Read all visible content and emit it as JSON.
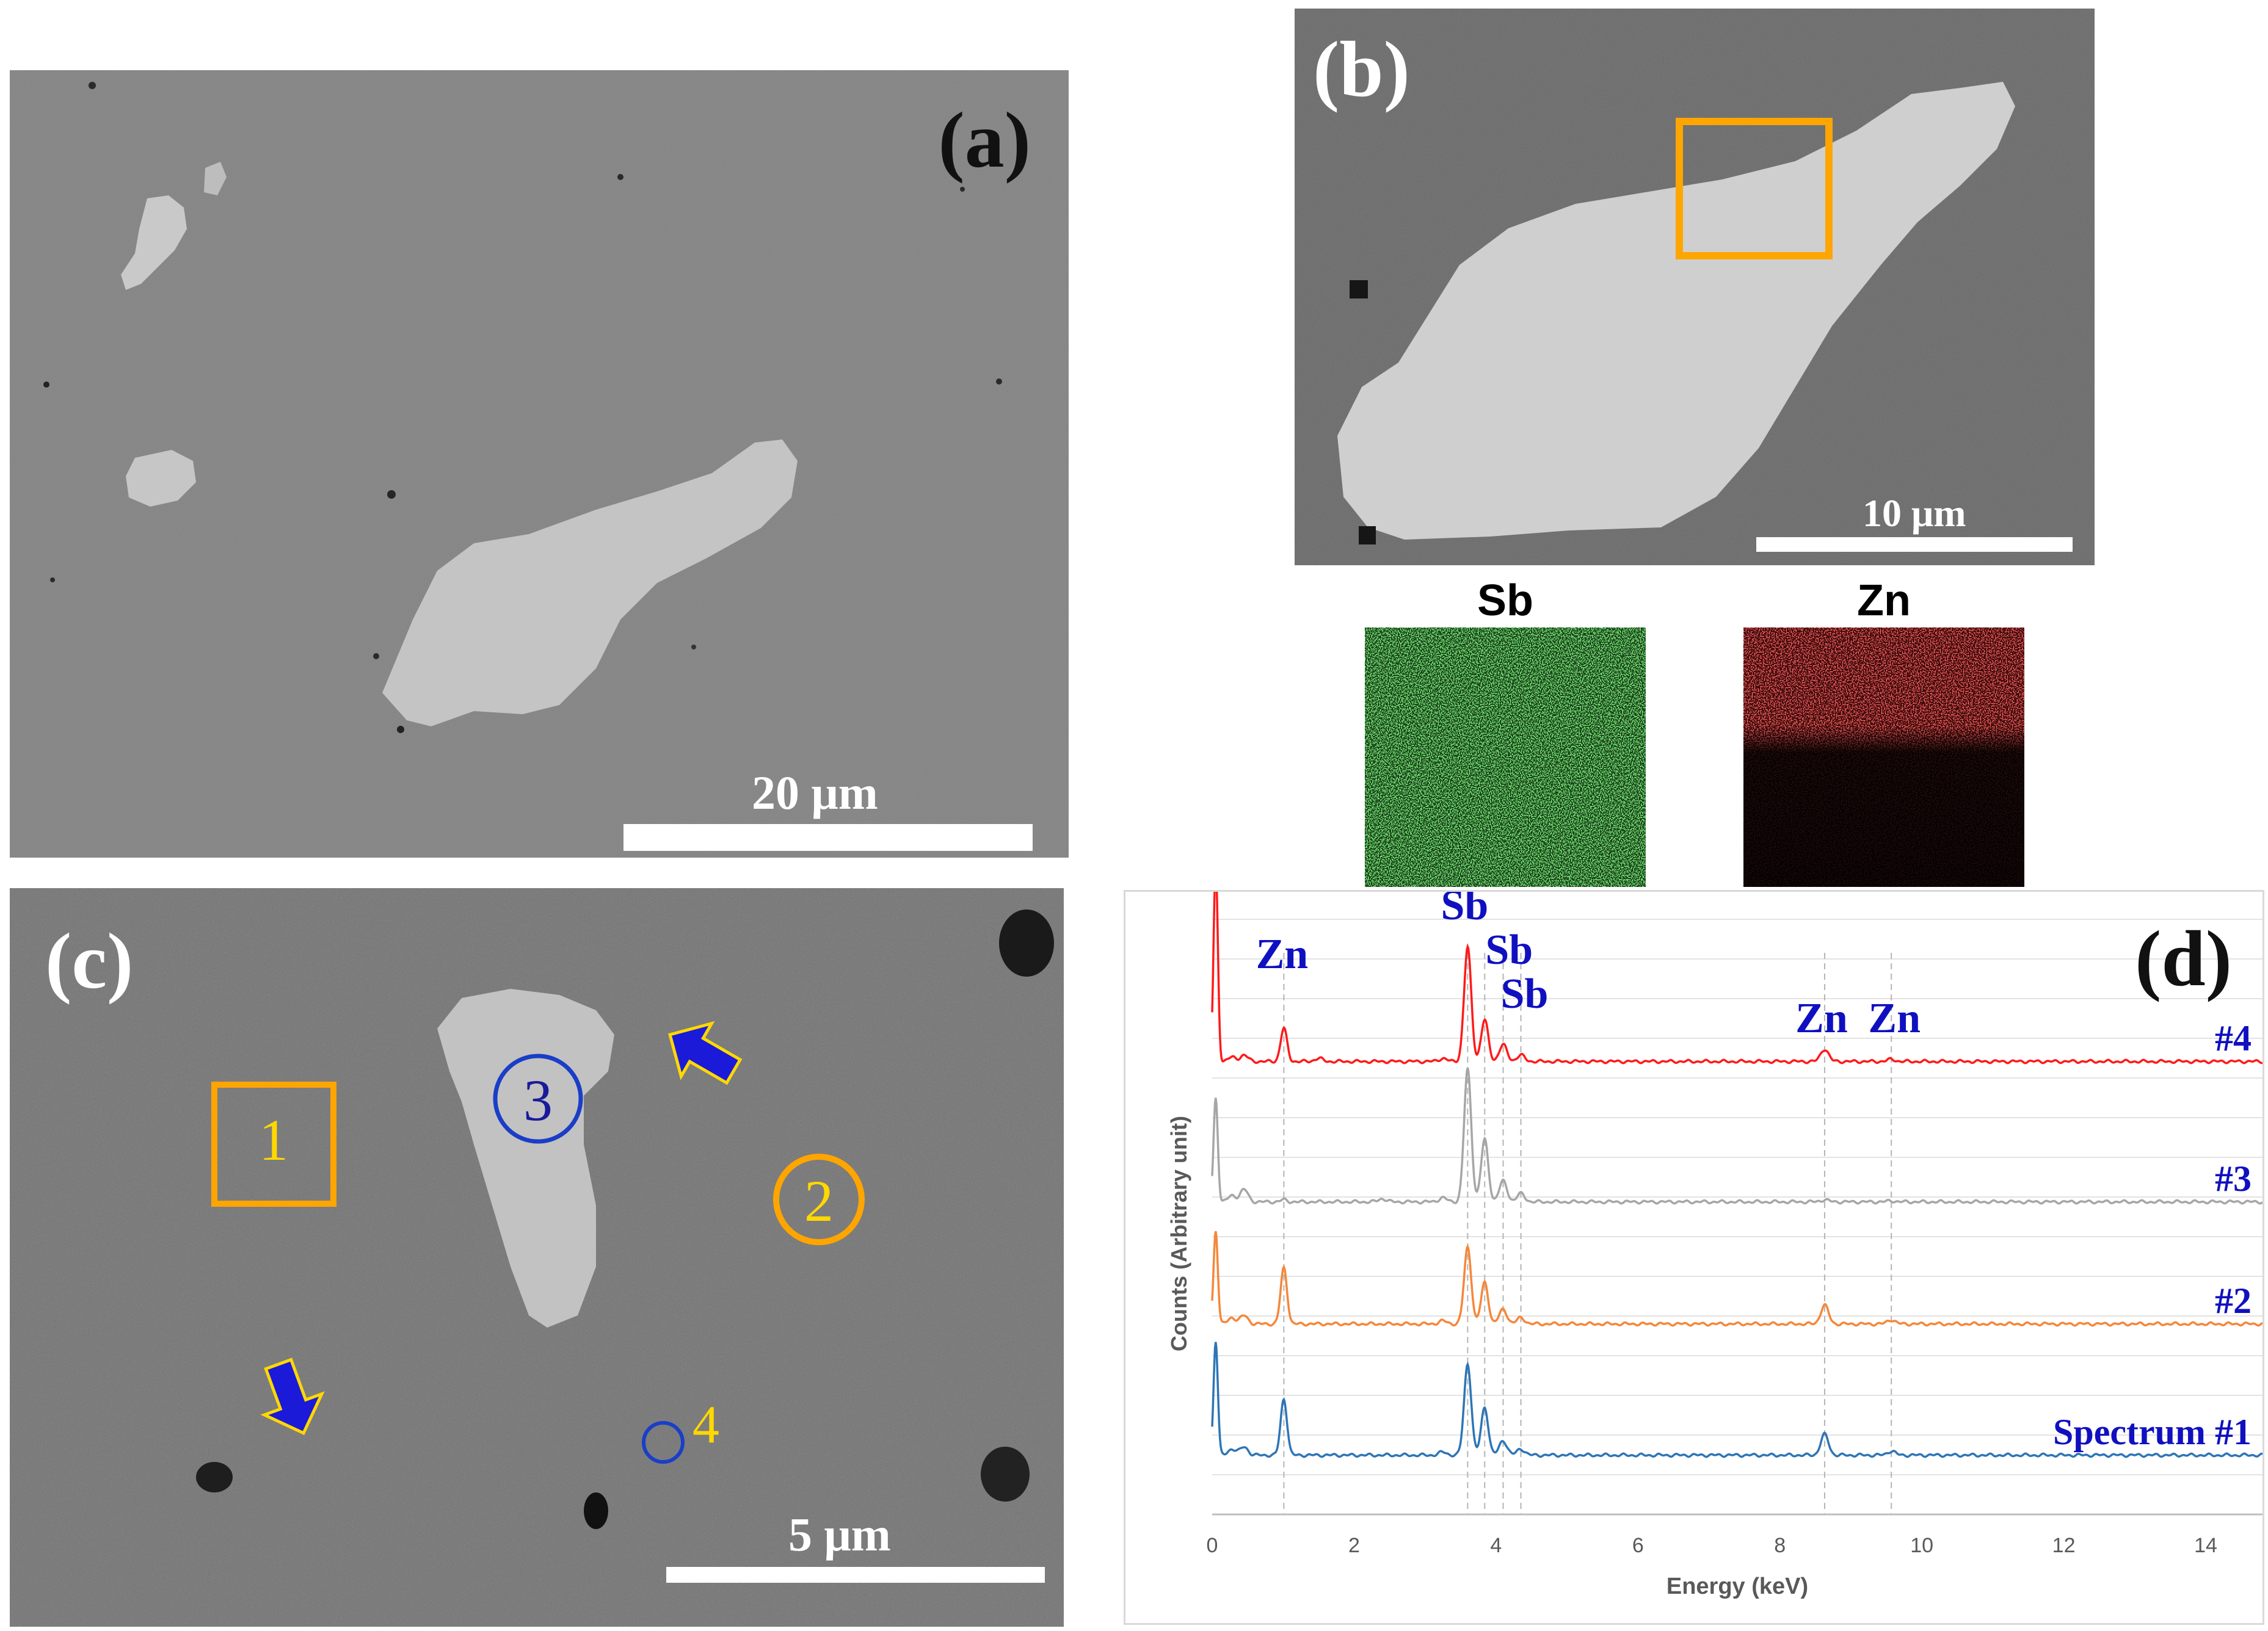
{
  "panels": {
    "a": {
      "label": "(a)",
      "scale_label": "20 μm"
    },
    "b": {
      "label": "(b)",
      "scale_label": "10 μm",
      "maps": [
        {
          "element": "Sb",
          "color": "#2ecc2e"
        },
        {
          "element": "Zn",
          "color": "#e01b1b"
        }
      ]
    },
    "c": {
      "label": "(c)",
      "scale_label": "5 μm",
      "markers": [
        "1",
        "2",
        "3",
        "4"
      ]
    },
    "d": {
      "label": "(d)"
    }
  },
  "colors": {
    "highlight_orange": "#ffa500",
    "marker_blue": "#1a3ec8",
    "marker_yellow": "#ffd800",
    "annotation_blue": "#1010c0"
  },
  "chart_data": {
    "type": "line",
    "xlabel": "Energy (keV)",
    "ylabel": "Counts (Arbitrary unit)",
    "xlim": [
      0,
      14.8
    ],
    "xticks": [
      0,
      2,
      4,
      6,
      8,
      10,
      12,
      14
    ],
    "grid": true,
    "peak_labels": [
      {
        "text": "Zn",
        "x": 1.01
      },
      {
        "text": "Sb",
        "x": 3.6
      },
      {
        "text": "Sb",
        "x": 3.84
      },
      {
        "text": "Sb",
        "x": 4.1
      },
      {
        "text": "Zn",
        "x": 8.63
      },
      {
        "text": "Zn",
        "x": 9.57
      }
    ],
    "peak_lines_x": [
      1.01,
      3.6,
      3.84,
      4.1,
      4.35,
      8.63,
      9.57
    ],
    "series": [
      {
        "name": "#4",
        "color": "#ff1a1a",
        "peaks": {
          "0.05": 95,
          "0.28": 2,
          "0.45": 3,
          "1.01": 16,
          "1.5": 1.5,
          "3.25": 1.5,
          "3.6": 55,
          "3.84": 20,
          "4.1": 8,
          "4.35": 3,
          "8.63": 6,
          "9.57": 1
        }
      },
      {
        "name": "#3",
        "color": "#a6a6a6",
        "peaks": {
          "0.05": 50,
          "0.28": 3,
          "0.45": 6,
          "1.01": 1,
          "2.4": 1.5,
          "3.25": 2,
          "3.6": 64,
          "3.84": 30,
          "4.1": 10,
          "4.35": 4,
          "8.63": 1,
          "9.57": 0.5
        }
      },
      {
        "name": "#2",
        "color": "#f5873a",
        "peaks": {
          "0.05": 45,
          "0.28": 3,
          "0.45": 4,
          "1.01": 27,
          "3.25": 1.5,
          "3.6": 37,
          "3.84": 20,
          "4.1": 7,
          "4.35": 3,
          "8.63": 9,
          "9.57": 2
        }
      },
      {
        "name": "Spectrum #1",
        "color": "#2e75b6",
        "peaks": {
          "0.05": 55,
          "0.28": 3,
          "0.45": 4,
          "1.01": 27,
          "3.25": 1.5,
          "3.6": 44,
          "3.84": 23,
          "4.1": 7,
          "4.35": 3,
          "8.63": 10,
          "9.57": 2
        }
      }
    ]
  }
}
